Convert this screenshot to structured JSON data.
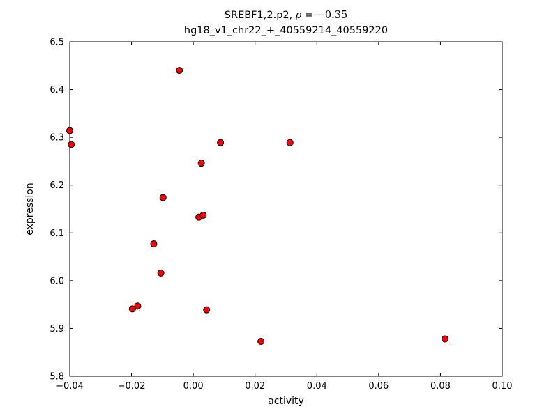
{
  "chart_data": {
    "type": "scatter",
    "title_prefix": "SREBF1,2.p2, ",
    "title_rho": "ρ",
    "title_rest": " = −0.35",
    "subtitle": "hg18_v1_chr22_+_40559214_40559220",
    "xlabel": "activity",
    "ylabel": "expression",
    "xlim": [
      -0.04,
      0.1
    ],
    "ylim": [
      5.8,
      6.5
    ],
    "xtick_values": [
      -0.04,
      -0.02,
      0.0,
      0.02,
      0.04,
      0.06,
      0.08,
      0.1
    ],
    "xtick_labels": [
      "−0.04",
      "−0.02",
      "0.00",
      "0.02",
      "0.04",
      "0.06",
      "0.08",
      "0.10"
    ],
    "ytick_values": [
      5.8,
      5.9,
      6.0,
      6.1,
      6.2,
      6.3,
      6.4,
      6.5
    ],
    "ytick_labels": [
      "5.8",
      "5.9",
      "6.0",
      "6.1",
      "6.2",
      "6.3",
      "6.4",
      "6.5"
    ],
    "grid": false,
    "legend": null,
    "marker": {
      "fill": "#ff0000",
      "edge": "#000000",
      "radius": 4.5
    },
    "points": [
      [
        -0.04,
        6.314
      ],
      [
        -0.0395,
        6.285
      ],
      [
        -0.0045,
        6.44
      ],
      [
        0.0088,
        6.289
      ],
      [
        0.0313,
        6.289
      ],
      [
        0.0026,
        6.246
      ],
      [
        -0.0098,
        6.174
      ],
      [
        0.0018,
        6.133
      ],
      [
        0.0032,
        6.137
      ],
      [
        -0.0128,
        6.077
      ],
      [
        -0.0105,
        6.016
      ],
      [
        -0.0197,
        5.941
      ],
      [
        -0.018,
        5.947
      ],
      [
        0.0043,
        5.939
      ],
      [
        0.0219,
        5.873
      ],
      [
        0.0815,
        5.878
      ]
    ]
  }
}
